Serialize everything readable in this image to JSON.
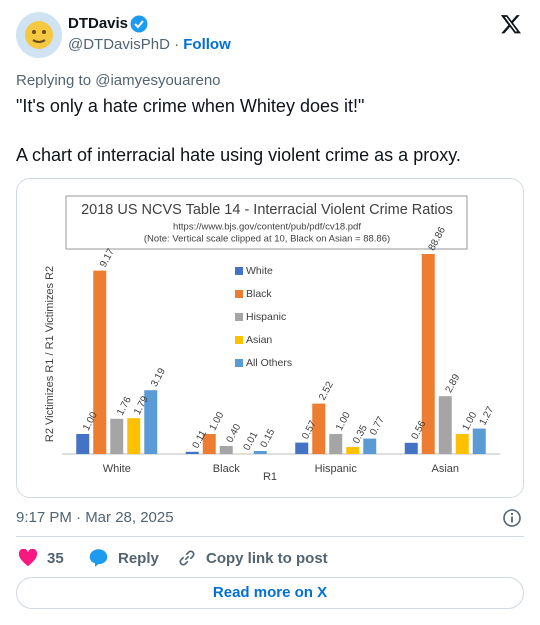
{
  "author": {
    "name": "DTDavis",
    "handle": "@DTDavisPhD",
    "separator": "·",
    "follow": "Follow"
  },
  "reply_to": "Replying to @iamyesyouareno",
  "text": [
    "\"It's only a hate crime when Whitey does it!\"",
    "A chart of interracial hate using violent crime as a proxy."
  ],
  "timestamp": "9:17 PM · Mar 28, 2025",
  "actions": {
    "likes": 35,
    "reply": "Reply",
    "copy": "Copy link to post"
  },
  "read_more": "Read more on X",
  "chart_data": {
    "type": "bar",
    "title": "2018 US NCVS Table 14 - Interracial Violent Crime Ratios",
    "subtitle": [
      "https://www.bjs.gov/content/pub/pdf/cv18.pdf",
      "(Note: Vertical scale clipped at 10, Black on Asian = 88.86)"
    ],
    "x_label": "R1",
    "y_label": "R2 Victimizes R1 / R1 Victimizes R2",
    "categories": [
      "White",
      "Black",
      "Hispanic",
      "Asian"
    ],
    "ylim": [
      0,
      10
    ],
    "series": [
      {
        "name": "White",
        "color": "#4472c4",
        "values": [
          1,
          0.11,
          0.57,
          0.56
        ],
        "value_labels": [
          "1.00",
          "0.11",
          "0.57",
          "0.56"
        ]
      },
      {
        "name": "Black",
        "color": "#ed7d31",
        "values": [
          9.17,
          1,
          2.52,
          88.86
        ],
        "value_labels": [
          "9.17",
          "1.00",
          "2.52",
          "88.86"
        ]
      },
      {
        "name": "Hispanic",
        "color": "#a5a5a5",
        "values": [
          1.76,
          0.4,
          1,
          2.89
        ],
        "value_labels": [
          "1.76",
          "0.40",
          "1.00",
          "2.89"
        ]
      },
      {
        "name": "Asian",
        "color": "#ffc000",
        "values": [
          1.79,
          0.01,
          0.35,
          1
        ],
        "value_labels": [
          "1.79",
          "0.01",
          "0.35",
          "1.00"
        ]
      },
      {
        "name": "All Others",
        "color": "#5b9bd5",
        "values": [
          3.19,
          0.15,
          0.77,
          1.27
        ],
        "value_labels": [
          "3.19",
          "0.15",
          "0.77",
          "1.27"
        ]
      }
    ]
  }
}
